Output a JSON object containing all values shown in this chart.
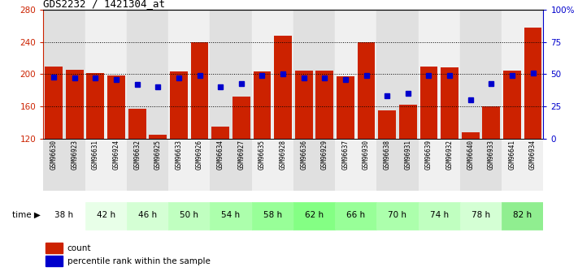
{
  "title": "GDS2232 / 1421304_at",
  "samples": [
    "GSM96630",
    "GSM96923",
    "GSM96631",
    "GSM96924",
    "GSM96632",
    "GSM96925",
    "GSM96633",
    "GSM96926",
    "GSM96634",
    "GSM96927",
    "GSM96635",
    "GSM96928",
    "GSM96636",
    "GSM96929",
    "GSM96637",
    "GSM96930",
    "GSM96638",
    "GSM96931",
    "GSM96639",
    "GSM96932",
    "GSM96640",
    "GSM96933",
    "GSM96641",
    "GSM96934"
  ],
  "counts": [
    209,
    205,
    201,
    198,
    157,
    125,
    203,
    240,
    135,
    172,
    203,
    248,
    204,
    204,
    197,
    240,
    155,
    162,
    210,
    208,
    128,
    160,
    204,
    258
  ],
  "percentiles": [
    48,
    47,
    47,
    46,
    42,
    40,
    47,
    49,
    40,
    43,
    49,
    50,
    47,
    47,
    46,
    49,
    33,
    35,
    49,
    49,
    30,
    43,
    49,
    51
  ],
  "time_groups": [
    {
      "label": "38 h",
      "cols": [
        0,
        1
      ]
    },
    {
      "label": "42 h",
      "cols": [
        2,
        3
      ]
    },
    {
      "label": "46 h",
      "cols": [
        4,
        5
      ]
    },
    {
      "label": "50 h",
      "cols": [
        6,
        7
      ]
    },
    {
      "label": "54 h",
      "cols": [
        8,
        9
      ]
    },
    {
      "label": "58 h",
      "cols": [
        10,
        11
      ]
    },
    {
      "label": "62 h",
      "cols": [
        12,
        13
      ]
    },
    {
      "label": "66 h",
      "cols": [
        14,
        15
      ]
    },
    {
      "label": "70 h",
      "cols": [
        16,
        17
      ]
    },
    {
      "label": "74 h",
      "cols": [
        18,
        19
      ]
    },
    {
      "label": "78 h",
      "cols": [
        20,
        21
      ]
    },
    {
      "label": "82 h",
      "cols": [
        22,
        23
      ]
    }
  ],
  "time_colors": [
    "#ffffff",
    "#e8ffe8",
    "#d4ffd4",
    "#c0ffc0",
    "#acffac",
    "#98ff98",
    "#84ff84",
    "#98ff98",
    "#acffac",
    "#c0ffc0",
    "#d4ffd4",
    "#90ee90"
  ],
  "ymin": 120,
  "ymax": 280,
  "yticks": [
    120,
    160,
    200,
    240,
    280
  ],
  "y2min": 0,
  "y2max": 100,
  "y2ticks": [
    0,
    25,
    50,
    75,
    100
  ],
  "y2ticklabels": [
    "0",
    "25",
    "50",
    "75",
    "100%"
  ],
  "bar_color": "#cc2200",
  "dot_color": "#0000cc",
  "bg_colors_even": "#e0e0e0",
  "bg_colors_odd": "#f0f0f0",
  "left_axis_color": "#cc2200",
  "right_axis_color": "#0000cc"
}
